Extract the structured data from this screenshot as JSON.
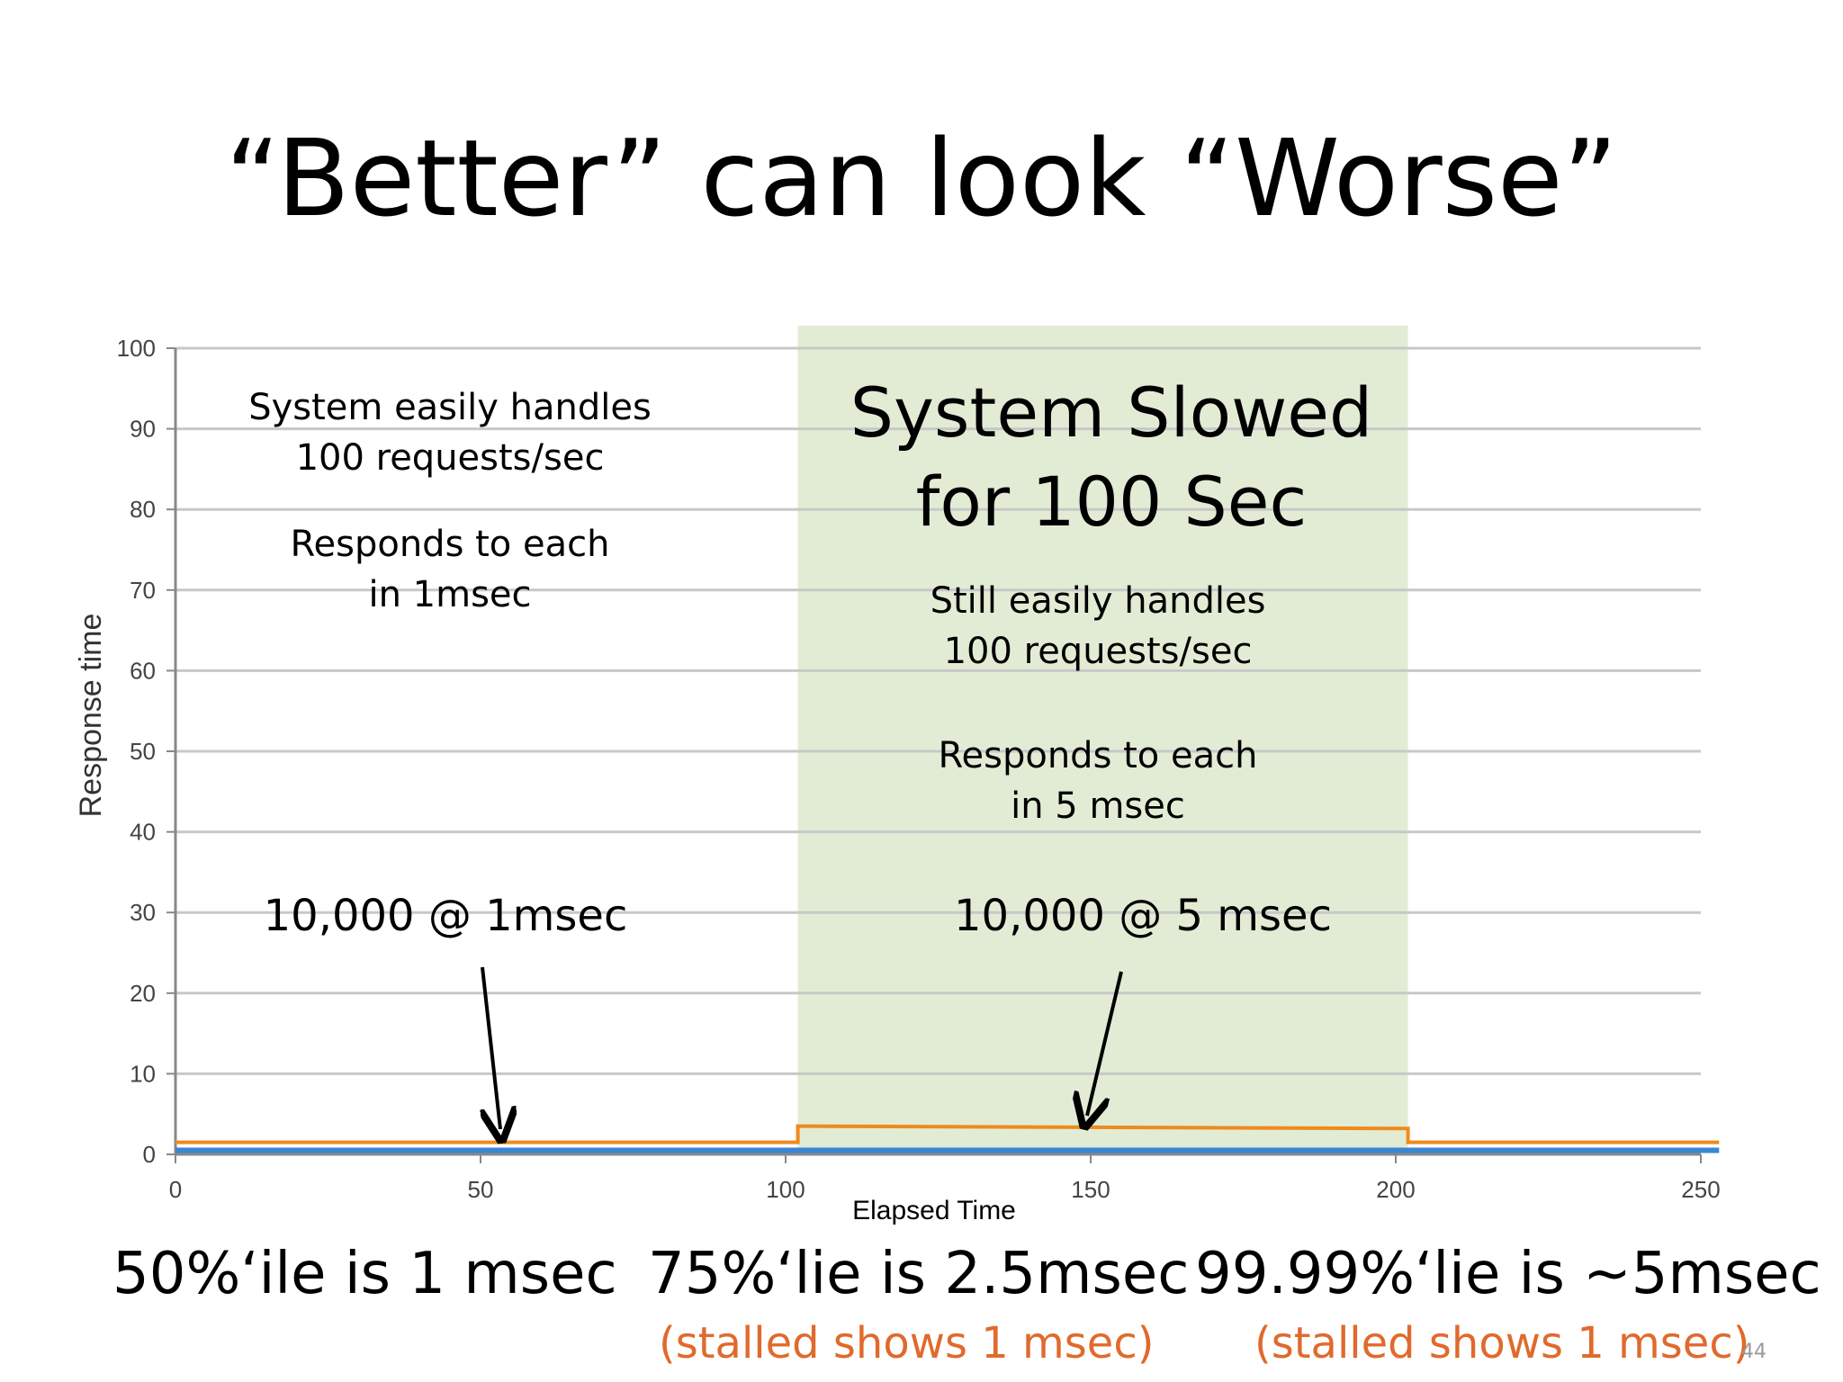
{
  "slide": {
    "title": "“Better” can look “Worse”",
    "page_number": "44"
  },
  "annotations": {
    "left_line1": "System easily handles",
    "left_line2": "100 requests/sec",
    "left_line3": "Responds to each",
    "left_line4": "in 1msec",
    "left_count": "10,000 @ 1msec",
    "shaded_title1": "System Slowed",
    "shaded_title2": "for 100 Sec",
    "shaded_line1": "Still easily handles",
    "shaded_line2": "100 requests/sec",
    "shaded_line3": "Responds to each",
    "shaded_line4": "in 5 msec",
    "shaded_count": "10,000 @ 5 msec"
  },
  "bottom": {
    "p50": "50%‘ile is 1 msec",
    "p75": "75%‘lie is 2.5msec",
    "p9999": "99.99%‘lie is ~5msec",
    "note1": "(stalled shows 1 msec)",
    "note2": "(stalled shows 1 msec)"
  },
  "colors": {
    "shade": "#e2ecd5",
    "orange_series": "#f08a1c",
    "blue_series": "#3a86d4",
    "grid": "#c8c8c8",
    "note_text": "#e06a2c"
  },
  "chart_data": {
    "type": "line",
    "xlabel": "Elapsed Time",
    "ylabel": "Response time",
    "xlim": [
      0,
      250
    ],
    "ylim": [
      0,
      100
    ],
    "x_ticks": [
      "0",
      "50",
      "100",
      "150",
      "200",
      "250"
    ],
    "y_ticks": [
      "0",
      "10",
      "20",
      "30",
      "40",
      "50",
      "60",
      "70",
      "80",
      "90",
      "100"
    ],
    "grid": true,
    "shaded_region": {
      "x": [
        102,
        202
      ]
    },
    "series": [
      {
        "color": "#f08a1c",
        "points": [
          [
            0,
            1.5
          ],
          [
            102,
            1.5
          ],
          [
            102,
            3.5
          ],
          [
            202,
            3.2
          ],
          [
            202,
            1.5
          ],
          [
            253,
            1.5
          ]
        ]
      },
      {
        "color": "#3a86d4",
        "points": [
          [
            0,
            0.5
          ],
          [
            253,
            0.5
          ]
        ]
      }
    ]
  }
}
